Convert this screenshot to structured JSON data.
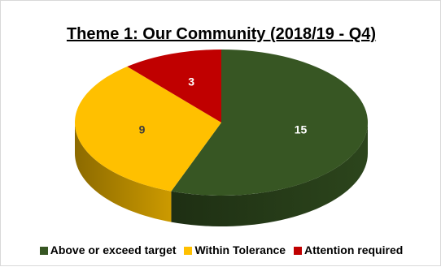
{
  "chart_data": {
    "type": "pie",
    "title": "Theme 1: Our Community (2018/19 - Q4)",
    "categories": [
      "Above or exceed target",
      "Within Tolerance",
      "Attention required"
    ],
    "values": [
      15,
      9,
      3
    ],
    "colors": [
      "#375623",
      "#ffc000",
      "#c00000"
    ],
    "legend": "bottom"
  }
}
